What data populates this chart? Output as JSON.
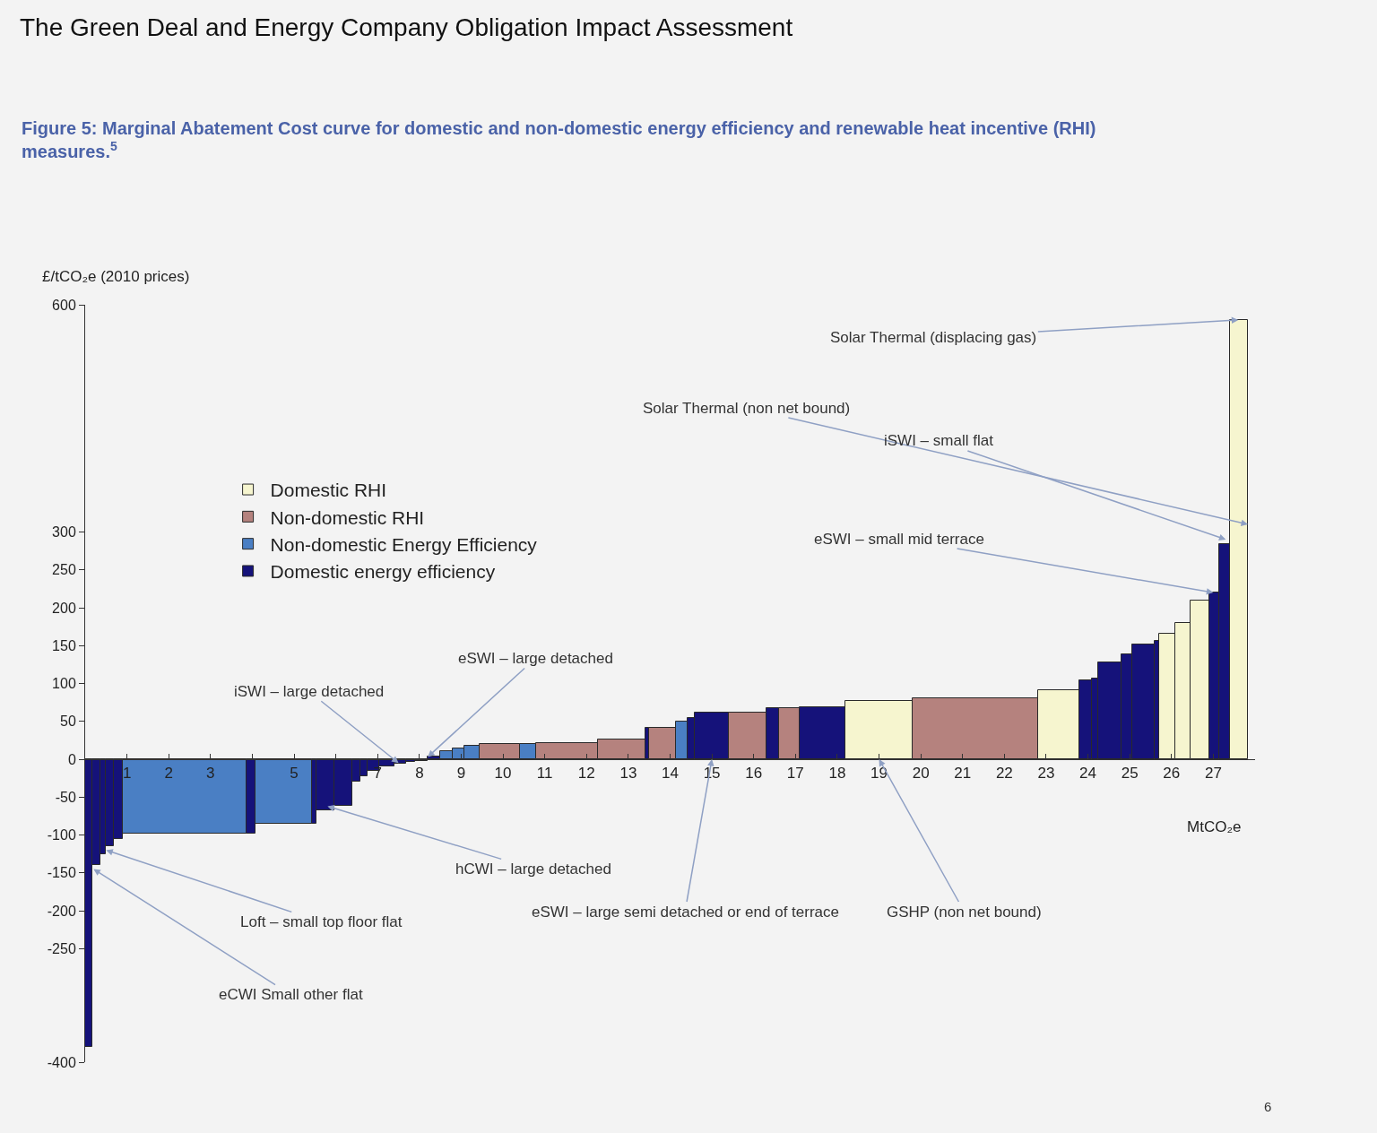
{
  "chart_data": {
    "type": "histogram",
    "title": "The Green Deal and Energy Company Obligation Impact Assessment",
    "subtitle": "Figure 5: Marginal Abatement Cost curve for domestic and non-domestic energy efficiency and renewable heat incentive (RHI) measures.$^{5}$",
    "xlabel": "MtCO₂e",
    "ylabel": "£/tCO₂e (2010 prices)",
    "bins": [
      0,
      0.17,
      0.36,
      0.49,
      0.69,
      0.9,
      3.86,
      4.08,
      5.43,
      5.54,
      5.97,
      6.39,
      6.58,
      6.76,
      7.04,
      7.4,
      7.68,
      7.9,
      8.2,
      8.5,
      8.8,
      9.08,
      9.44,
      10.41,
      10.8,
      12.27,
      13.41,
      13.5,
      14.14,
      14.42,
      14.6,
      15.4,
      16.3,
      16.6,
      17.1,
      18.2,
      19.8,
      22.8,
      23.8,
      24.1,
      24.25,
      24.8,
      25.05,
      25.6,
      25.7,
      26.1,
      26.45,
      26.9,
      27.15,
      27.4,
      27.83
    ],
    "series": [
      {
        "name": "Domestic RHI",
        "color": "#f6f5cf",
        "values": [
          null,
          null,
          null,
          null,
          null,
          null,
          null,
          null,
          null,
          null,
          null,
          null,
          null,
          null,
          null,
          null,
          null,
          null,
          null,
          null,
          null,
          null,
          null,
          null,
          null,
          null,
          null,
          null,
          null,
          null,
          null,
          null,
          null,
          null,
          null,
          77,
          null,
          91,
          null,
          null,
          null,
          null,
          null,
          null,
          166,
          180,
          209,
          null,
          null,
          580
        ]
      },
      {
        "name": "Non-domestic RHI",
        "color": "#b5827e",
        "values": [
          null,
          null,
          null,
          null,
          null,
          null,
          null,
          null,
          null,
          null,
          null,
          null,
          null,
          null,
          null,
          null,
          null,
          null,
          null,
          null,
          null,
          null,
          20,
          null,
          21,
          26,
          null,
          42,
          null,
          null,
          null,
          61,
          null,
          67,
          null,
          null,
          80,
          null,
          null,
          null,
          null,
          null,
          null,
          null,
          null,
          null,
          null,
          null,
          null,
          null
        ]
      },
      {
        "name": "Non-domestic Energy Efficiency",
        "color": "#4a7fc4",
        "values": [
          null,
          null,
          null,
          null,
          null,
          -98,
          null,
          -85,
          null,
          null,
          null,
          null,
          null,
          null,
          null,
          null,
          null,
          null,
          null,
          11,
          14,
          18,
          null,
          20,
          null,
          null,
          null,
          null,
          50,
          null,
          null,
          null,
          null,
          null,
          null,
          null,
          null,
          null,
          null,
          null,
          null,
          null,
          null,
          null,
          null,
          null,
          null,
          null,
          null,
          null
        ]
      },
      {
        "name": "Domestic energy efficiency",
        "color": "#15127a",
        "values": [
          -380,
          -140,
          -125,
          -115,
          -105,
          null,
          -98,
          null,
          -85,
          -68,
          -62,
          -30,
          -22,
          -15,
          -10,
          -6,
          -3,
          -2,
          3,
          null,
          null,
          null,
          null,
          null,
          null,
          null,
          42,
          null,
          null,
          54,
          61,
          null,
          67,
          null,
          69,
          null,
          null,
          null,
          104,
          107,
          128,
          138,
          151,
          156,
          null,
          null,
          null,
          220,
          284,
          null
        ]
      }
    ],
    "xlim": [
      0,
      28
    ],
    "xticks": [
      {
        "value": 0,
        "label": null
      },
      1,
      2,
      3,
      {
        "value": 4,
        "label": null
      },
      5,
      {
        "value": 6,
        "label": null
      },
      7,
      8,
      9,
      10,
      11,
      12,
      13,
      14,
      15,
      16,
      17,
      18,
      19,
      20,
      21,
      22,
      23,
      24,
      25,
      26,
      27
    ],
    "ylim": [
      -400,
      600
    ],
    "yticks": [
      -400,
      -250,
      -200,
      -150,
      -100,
      -50,
      0,
      50,
      100,
      150,
      200,
      250,
      300,
      600
    ],
    "grid": false,
    "legend": "top left",
    "annotations": [
      {
        "text": "Solar Thermal (displacing gas)",
        "x": 27.6,
        "y": 580
      },
      "Solar Thermal (non net bound)",
      {
        "text": "iSWI – small flat",
        "x": 27.3,
        "y": 290
      },
      {
        "text": "eSWI – small mid terrace",
        "x": 27,
        "y": 220
      },
      {
        "text": "iSWI – large detached",
        "x": 7.5,
        "y": -5
      },
      {
        "text": "eSWI – large detached",
        "x": 8.2,
        "y": 3
      },
      {
        "text": "hCWI – large detached",
        "x": 5.8,
        "y": -62
      },
      {
        "text": "eSWI – large semi detached or end of terrace",
        "x": 15,
        "y": 0
      },
      {
        "text": "GSHP (non net bound)",
        "x": 19,
        "y": 0
      },
      {
        "text": "Loft – small top floor flat",
        "x": 0.5,
        "y": -120
      },
      {
        "text": "eCWI Small other flat",
        "x": 0.2,
        "y": -145
      },
      "6"
    ]
  }
}
